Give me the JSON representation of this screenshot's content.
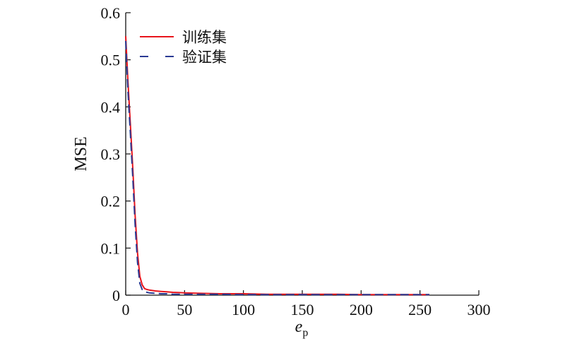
{
  "chart_data": {
    "type": "line",
    "title": "",
    "xlabel": "e",
    "xlabel_sub": "p",
    "ylabel": "MSE",
    "xlim": [
      0,
      300
    ],
    "ylim": [
      0,
      0.6
    ],
    "x_ticks": [
      "0",
      "50",
      "100",
      "150",
      "200",
      "250",
      "300"
    ],
    "y_ticks": [
      "0",
      "0.1",
      "0.2",
      "0.3",
      "0.4",
      "0.5",
      "0.6"
    ],
    "grid": false,
    "legend_position": "top-left",
    "series": [
      {
        "name": "训练集",
        "color": "#e8141c",
        "style": "solid",
        "x": [
          0,
          2,
          4,
          6,
          8,
          10,
          12,
          14,
          16,
          18,
          20,
          25,
          30,
          35,
          40,
          50,
          60,
          80,
          100,
          120,
          150,
          180,
          200,
          230,
          258
        ],
        "y": [
          0.55,
          0.45,
          0.36,
          0.27,
          0.17,
          0.09,
          0.04,
          0.022,
          0.014,
          0.012,
          0.011,
          0.009,
          0.008,
          0.007,
          0.006,
          0.005,
          0.004,
          0.003,
          0.003,
          0.002,
          0.002,
          0.002,
          0.001,
          0.001,
          0.001
        ]
      },
      {
        "name": "验证集",
        "color": "#2b3a93",
        "style": "dashed",
        "x": [
          0,
          2,
          4,
          6,
          8,
          10,
          12,
          14,
          16,
          18,
          20,
          25,
          30,
          35,
          40,
          50,
          60,
          80,
          100,
          120,
          150,
          180,
          200,
          230,
          258
        ],
        "y": [
          0.54,
          0.43,
          0.34,
          0.25,
          0.15,
          0.07,
          0.025,
          0.012,
          0.008,
          0.006,
          0.005,
          0.004,
          0.003,
          0.003,
          0.002,
          0.002,
          0.002,
          0.002,
          0.001,
          0.001,
          0.001,
          0.001,
          0.001,
          0.001,
          0.001
        ]
      }
    ]
  }
}
